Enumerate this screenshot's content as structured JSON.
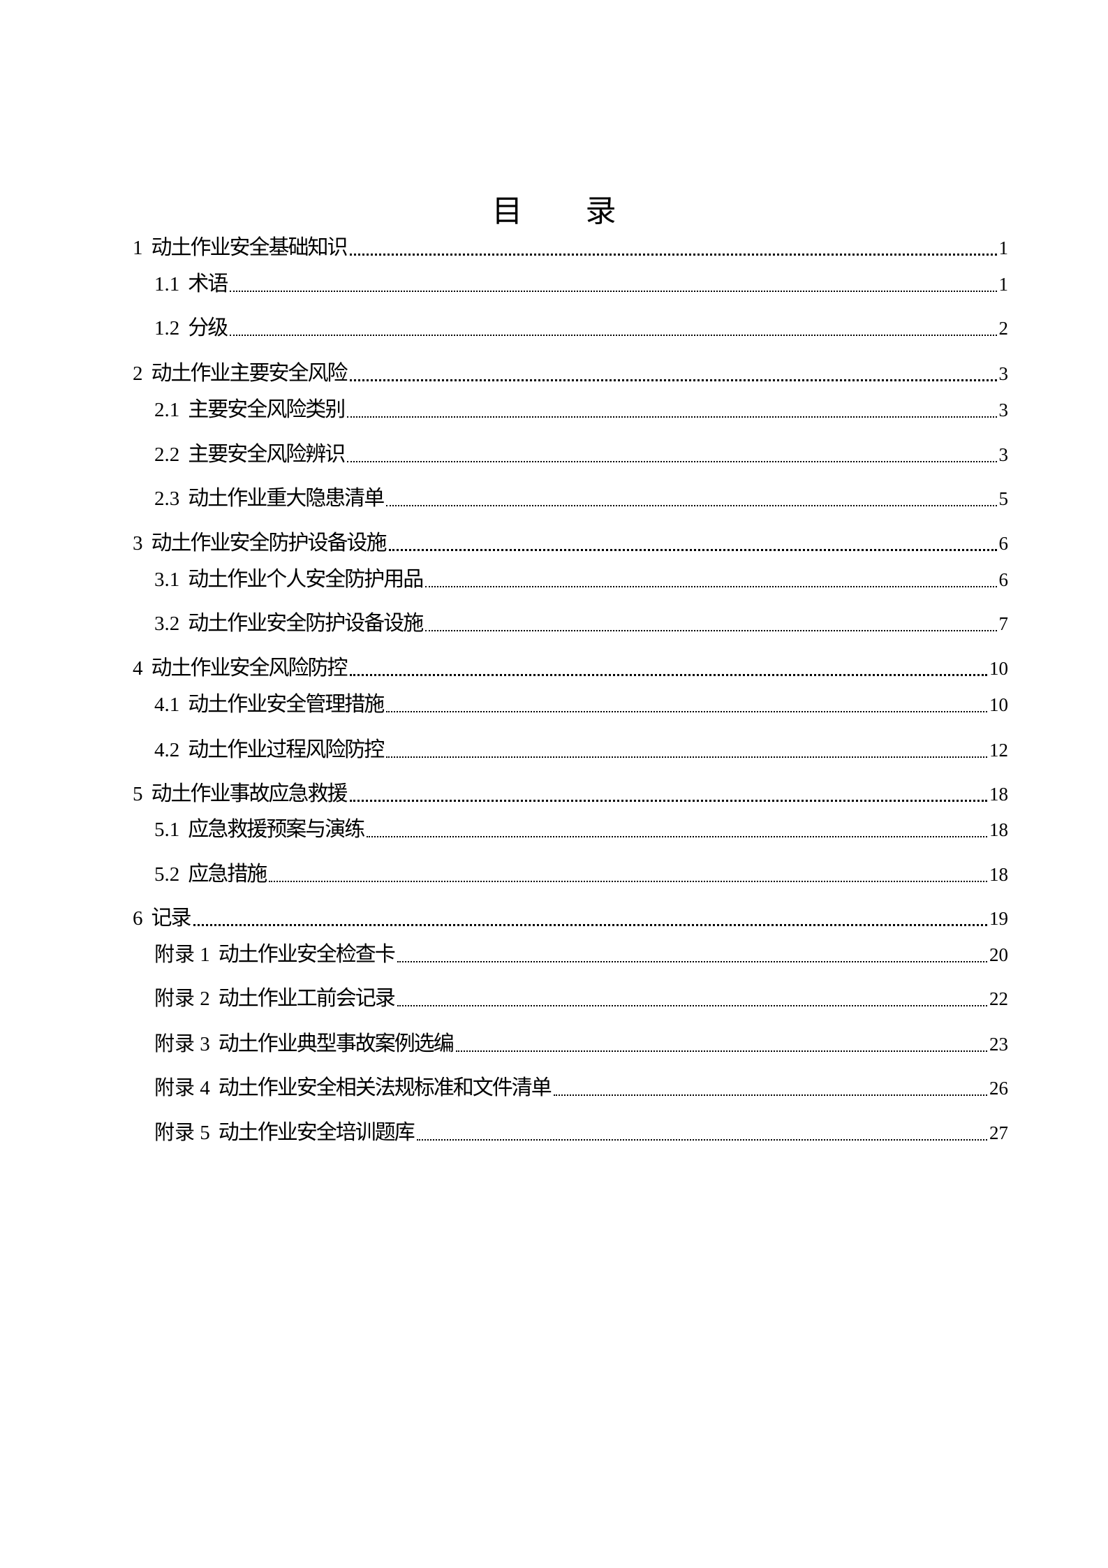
{
  "title": "目  录",
  "entries": [
    {
      "level": 1,
      "num": "1",
      "text": "动土作业安全基础知识",
      "page": "1"
    },
    {
      "level": 2,
      "num": "1.1",
      "text": "术语",
      "page": "1"
    },
    {
      "level": 2,
      "num": "1.2",
      "text": "分级",
      "page": "2"
    },
    {
      "level": 1,
      "num": "2",
      "text": "动土作业主要安全风险",
      "page": "3"
    },
    {
      "level": 2,
      "num": "2.1",
      "text": "主要安全风险类别",
      "page": "3"
    },
    {
      "level": 2,
      "num": "2.2",
      "text": "主要安全风险辨识",
      "page": "3"
    },
    {
      "level": 2,
      "num": "2.3",
      "text": "动土作业重大隐患清单",
      "page": "5"
    },
    {
      "level": 1,
      "num": "3",
      "text": "动土作业安全防护设备设施",
      "page": "6"
    },
    {
      "level": 2,
      "num": "3.1",
      "text": "动土作业个人安全防护用品",
      "page": "6"
    },
    {
      "level": 2,
      "num": "3.2",
      "text": "动土作业安全防护设备设施",
      "page": "7"
    },
    {
      "level": 1,
      "num": "4",
      "text": "动土作业安全风险防控",
      "page": "10"
    },
    {
      "level": 2,
      "num": "4.1",
      "text": "动土作业安全管理措施",
      "page": "10"
    },
    {
      "level": 2,
      "num": "4.2",
      "text": "动土作业过程风险防控",
      "page": "12"
    },
    {
      "level": 1,
      "num": "5",
      "text": "动土作业事故应急救援",
      "page": "18"
    },
    {
      "level": 2,
      "num": "5.1",
      "text": "应急救援预案与演练",
      "page": "18"
    },
    {
      "level": 2,
      "num": "5.2",
      "text": "应急措施",
      "page": "18"
    },
    {
      "level": 1,
      "num": "6",
      "text": "记录",
      "page": "19"
    },
    {
      "level": 2,
      "num": "附录 1",
      "text": "动土作业安全检查卡",
      "page": "20"
    },
    {
      "level": 2,
      "num": "附录 2",
      "text": "动土作业工前会记录",
      "page": "22"
    },
    {
      "level": 2,
      "num": "附录 3",
      "text": "动土作业典型事故案例选编",
      "page": "23"
    },
    {
      "level": 2,
      "num": "附录 4",
      "text": "动土作业安全相关法规标准和文件清单",
      "page": "26"
    },
    {
      "level": 2,
      "num": "附录 5",
      "text": "动土作业安全培训题库",
      "page": "27"
    }
  ]
}
